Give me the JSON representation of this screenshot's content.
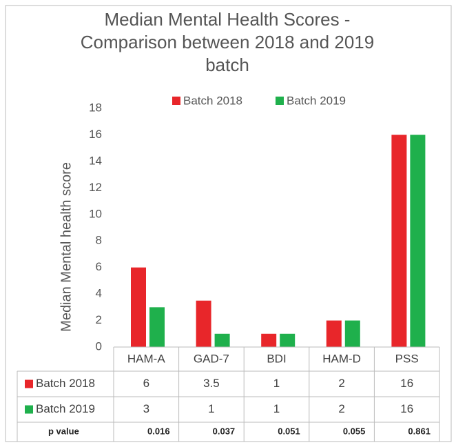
{
  "chart_data": {
    "type": "bar",
    "title": "Median Mental Health Scores - Comparison between 2018 and 2019 batch",
    "ylabel": "Median Mental health score",
    "categories": [
      "HAM-A",
      "GAD-7",
      "BDI",
      "HAM-D",
      "PSS"
    ],
    "series": [
      {
        "name": "Batch 2018",
        "color": "#e8262a",
        "values": [
          6,
          3.5,
          1,
          2,
          16
        ]
      },
      {
        "name": "Batch 2019",
        "color": "#1fb04c",
        "values": [
          3,
          1,
          1,
          2,
          16
        ]
      }
    ],
    "ylim": [
      0,
      18
    ],
    "yticks": [
      0,
      2,
      4,
      6,
      8,
      10,
      12,
      14,
      16,
      18
    ],
    "grid": false,
    "legend": "top",
    "p_value": {
      "label": "p value",
      "values": [
        0.016,
        0.037,
        0.051,
        0.055,
        0.861
      ]
    }
  }
}
